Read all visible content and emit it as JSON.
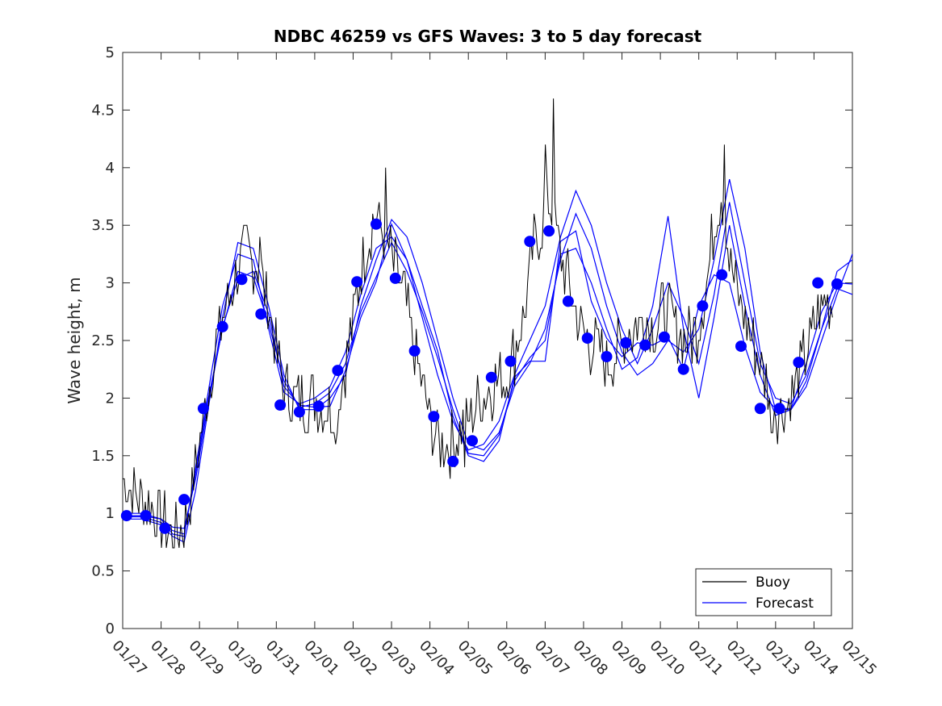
{
  "chart_data": {
    "type": "line",
    "title": "NDBC 46259 vs GFS Waves: 3 to 5 day forecast",
    "xlabel": "",
    "ylabel": "Wave height, m",
    "xlim": [
      0,
      19
    ],
    "ylim": [
      0,
      5
    ],
    "x_tick_labels": [
      "01/27",
      "01/28",
      "01/29",
      "01/30",
      "01/31",
      "02/01",
      "02/02",
      "02/03",
      "02/04",
      "02/05",
      "02/06",
      "02/07",
      "02/08",
      "02/09",
      "02/10",
      "02/11",
      "02/12",
      "02/13",
      "02/14",
      "02/15"
    ],
    "y_ticks": [
      0,
      0.5,
      1,
      1.5,
      2,
      2.5,
      3,
      3.5,
      4,
      4.5,
      5
    ],
    "y_tick_labels": [
      "0",
      "0.5",
      "1",
      "1.5",
      "2",
      "2.5",
      "3",
      "3.5",
      "4",
      "4.5",
      "5"
    ],
    "x_unit": "days since 01/27",
    "grid": false,
    "legend_position": "bottom-right",
    "legend": [
      {
        "label": "Buoy",
        "color": "#000000"
      },
      {
        "label": "Forecast",
        "color": "#0000ff"
      }
    ],
    "buoy_keypoints": [
      [
        0,
        1.3
      ],
      [
        0.3,
        1.2
      ],
      [
        0.6,
        1.1
      ],
      [
        0.9,
        1.0
      ],
      [
        1.2,
        0.85
      ],
      [
        1.4,
        0.8
      ],
      [
        1.6,
        0.9
      ],
      [
        1.8,
        1.2
      ],
      [
        2.0,
        1.6
      ],
      [
        2.2,
        2.0
      ],
      [
        2.4,
        2.4
      ],
      [
        2.6,
        2.7
      ],
      [
        2.8,
        2.9
      ],
      [
        3.0,
        3.1
      ],
      [
        3.2,
        3.3
      ],
      [
        3.4,
        3.2
      ],
      [
        3.6,
        3.1
      ],
      [
        3.8,
        2.8
      ],
      [
        4.0,
        2.4
      ],
      [
        4.2,
        2.1
      ],
      [
        4.5,
        2.0
      ],
      [
        4.8,
        1.95
      ],
      [
        5.0,
        2.0
      ],
      [
        5.3,
        1.9
      ],
      [
        5.6,
        1.95
      ],
      [
        5.8,
        2.3
      ],
      [
        6.0,
        2.7
      ],
      [
        6.2,
        3.1
      ],
      [
        6.4,
        3.4
      ],
      [
        6.6,
        3.6
      ],
      [
        6.8,
        3.4
      ],
      [
        7.0,
        3.2
      ],
      [
        7.2,
        3.0
      ],
      [
        7.4,
        2.8
      ],
      [
        7.6,
        2.4
      ],
      [
        7.8,
        2.1
      ],
      [
        8.0,
        1.8
      ],
      [
        8.2,
        1.65
      ],
      [
        8.5,
        1.6
      ],
      [
        8.8,
        1.7
      ],
      [
        9.0,
        1.8
      ],
      [
        9.3,
        2.0
      ],
      [
        9.6,
        2.1
      ],
      [
        9.9,
        2.2
      ],
      [
        10.0,
        2.2
      ],
      [
        10.3,
        2.5
      ],
      [
        10.5,
        2.8
      ],
      [
        10.7,
        3.3
      ],
      [
        10.9,
        3.5
      ],
      [
        11.1,
        3.7
      ],
      [
        11.3,
        3.4
      ],
      [
        11.5,
        3.1
      ],
      [
        11.7,
        2.9
      ],
      [
        11.9,
        2.6
      ],
      [
        12.1,
        2.5
      ],
      [
        12.4,
        2.4
      ],
      [
        12.7,
        2.3
      ],
      [
        13.0,
        2.5
      ],
      [
        13.3,
        2.6
      ],
      [
        13.6,
        2.7
      ],
      [
        13.9,
        2.6
      ],
      [
        14.1,
        2.8
      ],
      [
        14.4,
        2.6
      ],
      [
        14.7,
        2.5
      ],
      [
        15.0,
        2.6
      ],
      [
        15.2,
        3.0
      ],
      [
        15.4,
        3.5
      ],
      [
        15.6,
        3.8
      ],
      [
        15.8,
        3.2
      ],
      [
        16.0,
        2.9
      ],
      [
        16.2,
        2.7
      ],
      [
        16.5,
        2.4
      ],
      [
        16.7,
        2.2
      ],
      [
        16.9,
        2.0
      ],
      [
        17.1,
        1.9
      ],
      [
        17.3,
        1.95
      ],
      [
        17.5,
        2.1
      ],
      [
        17.7,
        2.3
      ],
      [
        17.9,
        2.5
      ],
      [
        18.1,
        2.7
      ],
      [
        18.3,
        2.85
      ],
      [
        18.5,
        2.8
      ]
    ],
    "buoy_peaks": [
      [
        3.25,
        3.5
      ],
      [
        3.55,
        3.4
      ],
      [
        6.85,
        4.0
      ],
      [
        11.2,
        4.6
      ],
      [
        11.0,
        4.2
      ],
      [
        15.65,
        4.2
      ],
      [
        1.35,
        0.7
      ],
      [
        8.9,
        1.4
      ],
      [
        5.55,
        1.6
      ],
      [
        16.9,
        1.7
      ]
    ],
    "forecast_series": [
      {
        "name": "Forecast run 1",
        "x": [
          0,
          0.5,
          1,
          1.3,
          1.6,
          1.9,
          2.2,
          2.6,
          3.0,
          3.4,
          3.8,
          4.2,
          4.6,
          5.0,
          5.4,
          5.8,
          6.2,
          6.6,
          7.0,
          7.4,
          7.8,
          8.2,
          8.6,
          9.0,
          9.4,
          9.8,
          10.2,
          10.6,
          11.0,
          11.4,
          11.8,
          12.2,
          12.6,
          13.0,
          13.4,
          13.8,
          14.2,
          14.6,
          15.0,
          15.4,
          15.8,
          16.2,
          16.6,
          17.0,
          17.4,
          17.8,
          18.2,
          18.6,
          19.0
        ],
        "y": [
          0.98,
          0.98,
          0.95,
          0.88,
          0.87,
          1.3,
          1.9,
          2.62,
          3.03,
          3.1,
          2.73,
          2.1,
          1.94,
          1.92,
          1.93,
          2.24,
          2.7,
          3.01,
          3.51,
          3.2,
          2.8,
          2.41,
          1.84,
          1.5,
          1.45,
          1.63,
          2.18,
          2.32,
          2.32,
          3.36,
          3.45,
          2.84,
          2.52,
          2.36,
          2.48,
          2.46,
          2.53,
          2.25,
          2.8,
          3.07,
          3.0,
          2.45,
          2.05,
          1.91,
          1.91,
          2.3,
          2.75,
          3.0,
          2.99
        ]
      },
      {
        "name": "Forecast run 2",
        "x": [
          0,
          0.5,
          1,
          1.3,
          1.6,
          1.9,
          2.2,
          2.6,
          3.0,
          3.4,
          3.8,
          4.2,
          4.6,
          5.0,
          5.4,
          5.8,
          6.2,
          6.6,
          7.0,
          7.4,
          7.8,
          8.2,
          8.6,
          9.0,
          9.4,
          9.8,
          10.2,
          10.6,
          11.0,
          11.4,
          11.8,
          12.2,
          12.6,
          13.0,
          13.4,
          13.8,
          14.2,
          14.6,
          15.0,
          15.4,
          15.8,
          16.2,
          16.6,
          17.0,
          17.4,
          17.8,
          18.2,
          18.6,
          19.0
        ],
        "y": [
          0.95,
          0.95,
          0.9,
          0.8,
          0.75,
          1.2,
          1.85,
          2.7,
          3.35,
          3.3,
          2.8,
          2.2,
          1.9,
          1.9,
          2.0,
          2.2,
          2.8,
          3.2,
          3.55,
          3.4,
          3.0,
          2.5,
          2.0,
          1.6,
          1.55,
          1.7,
          2.1,
          2.3,
          2.6,
          3.2,
          3.6,
          3.3,
          2.8,
          2.4,
          2.2,
          2.3,
          2.5,
          2.4,
          2.6,
          3.2,
          3.9,
          3.3,
          2.4,
          1.9,
          1.9,
          2.1,
          2.5,
          2.9,
          3.25
        ]
      },
      {
        "name": "Forecast run 3",
        "x": [
          0,
          0.5,
          1,
          1.3,
          1.6,
          1.9,
          2.2,
          2.6,
          3.0,
          3.4,
          3.8,
          4.2,
          4.6,
          5.0,
          5.4,
          5.8,
          6.2,
          6.6,
          7.0,
          7.4,
          7.8,
          8.2,
          8.6,
          9.0,
          9.4,
          9.8,
          10.2,
          10.6,
          11.0,
          11.4,
          11.8,
          12.2,
          12.6,
          13.0,
          13.4,
          13.8,
          14.2,
          14.6,
          15.0,
          15.4,
          15.8,
          16.2,
          16.6,
          17.0,
          17.4,
          17.8,
          18.2,
          18.6,
          19.0
        ],
        "y": [
          1.0,
          1.0,
          0.95,
          0.82,
          0.8,
          1.4,
          2.0,
          2.8,
          3.25,
          3.2,
          2.6,
          2.05,
          1.95,
          2.0,
          2.1,
          2.4,
          2.9,
          3.3,
          3.4,
          3.2,
          2.7,
          2.2,
          1.8,
          1.55,
          1.6,
          1.8,
          2.2,
          2.5,
          2.8,
          3.4,
          3.8,
          3.5,
          3.0,
          2.6,
          2.3,
          2.6,
          3.0,
          2.7,
          2.3,
          2.9,
          3.7,
          3.0,
          2.3,
          2.0,
          1.95,
          2.2,
          2.6,
          3.1,
          3.2
        ]
      },
      {
        "name": "Forecast run 4",
        "x": [
          0,
          0.5,
          1,
          1.3,
          1.6,
          1.9,
          2.2,
          2.6,
          3.0,
          3.4,
          3.8,
          4.2,
          4.6,
          5.0,
          5.4,
          5.8,
          6.2,
          6.6,
          7.0,
          7.4,
          7.8,
          8.2,
          8.6,
          9.0,
          9.4,
          9.8,
          10.2,
          10.6,
          11.0,
          11.4,
          11.8,
          12.2,
          12.6,
          13.0,
          13.4,
          13.8,
          14.2,
          14.6,
          15.0,
          15.4,
          15.8,
          16.2,
          16.6,
          17.0,
          17.4,
          17.8,
          18.2,
          18.6,
          19.0
        ],
        "y": [
          0.97,
          0.97,
          0.92,
          0.85,
          0.82,
          1.35,
          1.95,
          2.6,
          3.1,
          3.05,
          2.65,
          2.15,
          1.92,
          1.95,
          2.05,
          2.3,
          2.75,
          3.05,
          3.35,
          3.1,
          2.75,
          2.35,
          1.9,
          1.52,
          1.5,
          1.68,
          2.15,
          2.35,
          2.5,
          3.25,
          3.3,
          3.0,
          2.6,
          2.25,
          2.35,
          2.8,
          3.58,
          2.6,
          2.0,
          2.7,
          3.5,
          2.8,
          2.2,
          1.85,
          1.9,
          2.15,
          2.6,
          2.95,
          2.9
        ]
      }
    ],
    "forecast_markers": [
      [
        0.1,
        0.98
      ],
      [
        0.6,
        0.98
      ],
      [
        1.1,
        0.87
      ],
      [
        1.6,
        1.12
      ],
      [
        2.1,
        1.91
      ],
      [
        2.6,
        2.62
      ],
      [
        3.1,
        3.03
      ],
      [
        3.6,
        2.73
      ],
      [
        4.1,
        1.94
      ],
      [
        4.6,
        1.88
      ],
      [
        5.1,
        1.93
      ],
      [
        5.6,
        2.24
      ],
      [
        6.1,
        3.01
      ],
      [
        6.6,
        3.51
      ],
      [
        7.1,
        3.04
      ],
      [
        7.6,
        2.41
      ],
      [
        8.1,
        1.84
      ],
      [
        8.6,
        1.45
      ],
      [
        9.1,
        1.63
      ],
      [
        9.6,
        2.18
      ],
      [
        10.1,
        2.32
      ],
      [
        10.6,
        3.36
      ],
      [
        11.1,
        3.45
      ],
      [
        11.6,
        2.84
      ],
      [
        12.1,
        2.52
      ],
      [
        12.6,
        2.36
      ],
      [
        13.1,
        2.48
      ],
      [
        13.6,
        2.46
      ],
      [
        14.1,
        2.53
      ],
      [
        14.6,
        2.25
      ],
      [
        15.1,
        2.8
      ],
      [
        15.6,
        3.07
      ],
      [
        16.1,
        2.45
      ],
      [
        16.6,
        1.91
      ],
      [
        17.1,
        1.91
      ],
      [
        17.6,
        2.31
      ],
      [
        18.1,
        3.0
      ],
      [
        18.6,
        2.99
      ]
    ]
  }
}
